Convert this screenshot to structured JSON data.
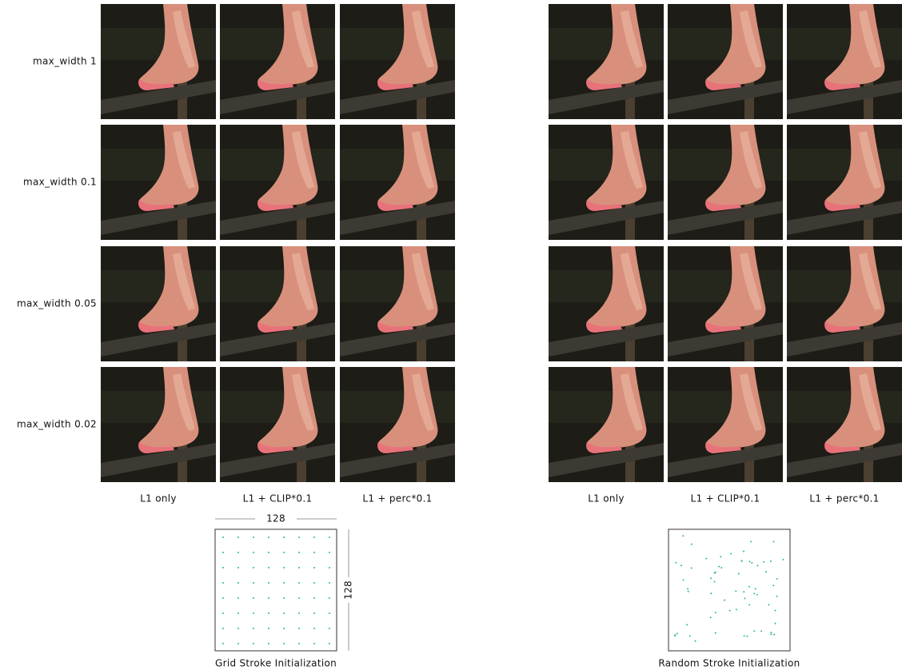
{
  "row_labels": [
    "max_width 1",
    "max_width 0.1",
    "max_width 0.05",
    "max_width 0.02"
  ],
  "groups": [
    {
      "column_labels": [
        "L1 only",
        "L1 + CLIP*0.1",
        "L1 + perc*0.1"
      ],
      "init": {
        "width_label": "128",
        "height_label": "128",
        "caption": "Grid Stroke Initialization"
      }
    },
    {
      "column_labels": [
        "L1 only",
        "L1 + CLIP*0.1",
        "L1 + perc*0.1"
      ],
      "init": {
        "caption": "Random Stroke Initialization"
      }
    }
  ]
}
